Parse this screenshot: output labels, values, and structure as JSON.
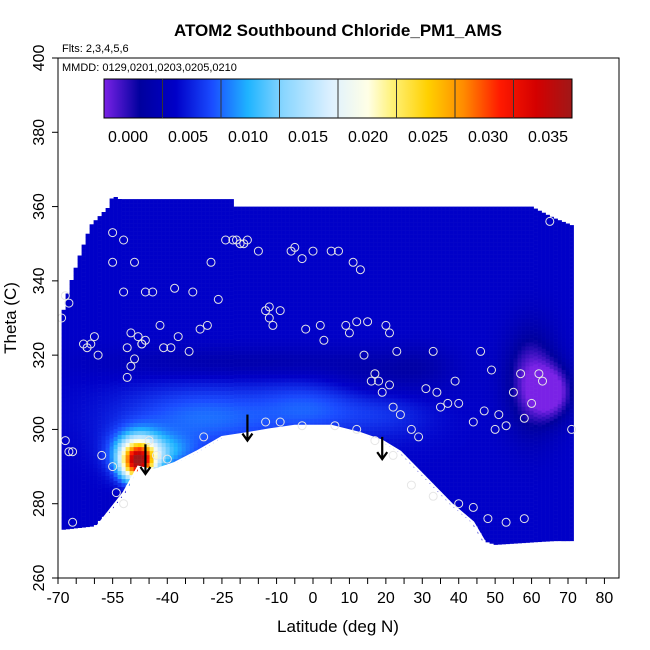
{
  "chart_data": {
    "type": "heatmap",
    "title": "ATOM2 Southbound Chloride_PM1_AMS",
    "subtitle_flights": "Flts: 2,3,4,5,6",
    "subtitle_dates": "MMDD: 0129,0201,0203,0205,0210",
    "xlabel": "Latitude (deg N)",
    "ylabel": "Theta (C)",
    "xlim": [
      -70,
      84
    ],
    "ylim": [
      260,
      400
    ],
    "x_ticks": [
      -70,
      -55,
      -40,
      -25,
      -10,
      0,
      10,
      20,
      30,
      40,
      50,
      60,
      70,
      80
    ],
    "x_ticks_minor": [
      -65,
      -60,
      -50,
      -45,
      -35,
      -30,
      -20,
      -15,
      -5,
      5,
      15,
      25,
      35,
      45,
      55,
      65,
      75
    ],
    "y_ticks": [
      260,
      280,
      300,
      320,
      340,
      360,
      380,
      400
    ],
    "colorbar": {
      "range": [
        -0.002,
        0.037
      ],
      "ticks": [
        "0.000",
        "0.005",
        "0.010",
        "0.015",
        "0.020",
        "0.025",
        "0.030",
        "0.035"
      ],
      "tick_values": [
        0.0,
        0.005,
        0.01,
        0.015,
        0.02,
        0.025,
        0.03,
        0.035
      ],
      "stops": [
        {
          "v": -0.002,
          "c": "#7a22e6"
        },
        {
          "v": 0.001,
          "c": "#00009e"
        },
        {
          "v": 0.004,
          "c": "#0000c8"
        },
        {
          "v": 0.007,
          "c": "#1a4cff"
        },
        {
          "v": 0.01,
          "c": "#1fb4ff"
        },
        {
          "v": 0.013,
          "c": "#8ad6ff"
        },
        {
          "v": 0.017,
          "c": "#dff1ff"
        },
        {
          "v": 0.02,
          "c": "#ffffe6"
        },
        {
          "v": 0.022,
          "c": "#fff27a"
        },
        {
          "v": 0.025,
          "c": "#ffd000"
        },
        {
          "v": 0.028,
          "c": "#ff8a00"
        },
        {
          "v": 0.031,
          "c": "#ff1a00"
        },
        {
          "v": 0.034,
          "c": "#d40000"
        },
        {
          "v": 0.037,
          "c": "#a01818"
        }
      ]
    },
    "field_background_value": 0.004,
    "data_domain_top": [
      [
        -69,
        330
      ],
      [
        -67,
        338
      ],
      [
        -64,
        347
      ],
      [
        -61,
        355
      ],
      [
        -58,
        358
      ],
      [
        -56,
        360
      ],
      [
        -55,
        363
      ],
      [
        -53,
        362
      ],
      [
        -35,
        362
      ],
      [
        -22,
        362
      ],
      [
        -22,
        360
      ],
      [
        0,
        360
      ],
      [
        20,
        360
      ],
      [
        40,
        360
      ],
      [
        60,
        360
      ],
      [
        66,
        357
      ],
      [
        71,
        355
      ]
    ],
    "data_domain_bottom": [
      [
        71,
        270
      ],
      [
        66,
        270
      ],
      [
        50,
        269
      ],
      [
        47,
        270
      ],
      [
        44,
        275
      ],
      [
        38,
        280
      ],
      [
        30,
        288
      ],
      [
        24,
        294
      ],
      [
        19,
        297
      ],
      [
        13,
        299
      ],
      [
        5,
        301
      ],
      [
        0,
        301
      ],
      [
        -5,
        301
      ],
      [
        -12,
        300
      ],
      [
        -18,
        299
      ],
      [
        -25,
        298
      ],
      [
        -32,
        294
      ],
      [
        -38,
        291
      ],
      [
        -44,
        289
      ],
      [
        -48,
        290
      ],
      [
        -52,
        283
      ],
      [
        -56,
        278
      ],
      [
        -60,
        274
      ],
      [
        -69,
        273
      ]
    ],
    "terrain_boundary": [
      [
        -60,
        273
      ],
      [
        -56,
        278
      ],
      [
        -52,
        283
      ],
      [
        -48,
        290
      ],
      [
        -44,
        289
      ],
      [
        -38,
        291
      ],
      [
        -32,
        294
      ],
      [
        -25,
        298
      ],
      [
        -18,
        299
      ],
      [
        -12,
        300
      ],
      [
        -5,
        301
      ],
      [
        0,
        301
      ],
      [
        5,
        301
      ],
      [
        13,
        299
      ],
      [
        19,
        297
      ],
      [
        24,
        294
      ],
      [
        30,
        288
      ],
      [
        38,
        280
      ],
      [
        44,
        275
      ],
      [
        47,
        270
      ]
    ],
    "anomalies": [
      {
        "x": -48,
        "y": 291,
        "sx": 3.2,
        "sy": 3.5,
        "v": 0.03
      },
      {
        "x": -48,
        "y": 294,
        "sx": 5,
        "sy": 4,
        "v": 0.013
      },
      {
        "x": -40,
        "y": 294,
        "sx": 6,
        "sy": 3,
        "v": 0.008
      },
      {
        "x": -30,
        "y": 303,
        "sx": 16,
        "sy": 6,
        "v": 0.008
      },
      {
        "x": 0,
        "y": 306,
        "sx": 10,
        "sy": 5,
        "v": 0.007
      },
      {
        "x": 20,
        "y": 305,
        "sx": 9,
        "sy": 5,
        "v": 0.006
      },
      {
        "x": -55,
        "y": 305,
        "sx": 4,
        "sy": 5,
        "v": 0.004
      },
      {
        "x": -20,
        "y": 318,
        "sx": 28,
        "sy": 3,
        "v": 0.002
      },
      {
        "x": -10,
        "y": 312,
        "sx": 16,
        "sy": 4,
        "v": 0.004
      },
      {
        "x": 20,
        "y": 313,
        "sx": 12,
        "sy": 5,
        "v": 0.002
      },
      {
        "x": 60,
        "y": 313,
        "sx": 5,
        "sy": 10,
        "v": -0.0015
      },
      {
        "x": 66,
        "y": 310,
        "sx": 4,
        "sy": 5,
        "v": -0.0015
      },
      {
        "x": 30,
        "y": 318,
        "sx": 6,
        "sy": 4,
        "v": 0.003
      },
      {
        "x": -45,
        "y": 280,
        "sx": 5,
        "sy": 4,
        "v": 0.001
      }
    ],
    "arrows": [
      {
        "x": -46,
        "y_from": 296,
        "y_to": 288
      },
      {
        "x": -18,
        "y_from": 304,
        "y_to": 297
      },
      {
        "x": 19,
        "y_from": 298,
        "y_to": 292
      }
    ],
    "sample_points": [
      [
        -69,
        330
      ],
      [
        -68,
        336
      ],
      [
        -67,
        334
      ],
      [
        -68,
        297
      ],
      [
        -67,
        294
      ],
      [
        -66,
        275
      ],
      [
        -63,
        323
      ],
      [
        -62,
        322
      ],
      [
        -61,
        323
      ],
      [
        -60,
        325
      ],
      [
        -59,
        320
      ],
      [
        -55,
        353
      ],
      [
        -55,
        345
      ],
      [
        -52,
        351
      ],
      [
        -52,
        337
      ],
      [
        -51,
        322
      ],
      [
        -50,
        326
      ],
      [
        -48,
        325
      ],
      [
        -47,
        323
      ],
      [
        -46,
        324
      ],
      [
        -49,
        319
      ],
      [
        -50,
        317
      ],
      [
        -51,
        314
      ],
      [
        -49,
        345
      ],
      [
        -47,
        323
      ],
      [
        -46,
        337
      ],
      [
        -44,
        337
      ],
      [
        -42,
        328
      ],
      [
        -41,
        322
      ],
      [
        -39,
        322
      ],
      [
        -38,
        338
      ],
      [
        -37,
        325
      ],
      [
        -34,
        321
      ],
      [
        -33,
        337
      ],
      [
        -31,
        327
      ],
      [
        -29,
        328
      ],
      [
        -28,
        345
      ],
      [
        -26,
        335
      ],
      [
        -24,
        351
      ],
      [
        -22,
        351
      ],
      [
        -21,
        351
      ],
      [
        -20,
        350
      ],
      [
        -19,
        350
      ],
      [
        -18,
        351
      ],
      [
        -15,
        348
      ],
      [
        -13,
        332
      ],
      [
        -12,
        333
      ],
      [
        -12,
        330
      ],
      [
        -11,
        328
      ],
      [
        -9,
        332
      ],
      [
        -6,
        348
      ],
      [
        -5,
        349
      ],
      [
        -3,
        346
      ],
      [
        -2,
        327
      ],
      [
        0,
        348
      ],
      [
        2,
        328
      ],
      [
        3,
        324
      ],
      [
        5,
        348
      ],
      [
        7,
        348
      ],
      [
        9,
        328
      ],
      [
        10,
        326
      ],
      [
        11,
        345
      ],
      [
        12,
        329
      ],
      [
        13,
        343
      ],
      [
        14,
        320
      ],
      [
        15,
        329
      ],
      [
        16,
        313
      ],
      [
        17,
        315
      ],
      [
        18,
        313
      ],
      [
        19,
        310
      ],
      [
        20,
        328
      ],
      [
        21,
        326
      ],
      [
        21,
        312
      ],
      [
        22,
        306
      ],
      [
        23,
        321
      ],
      [
        24,
        304
      ],
      [
        27,
        300
      ],
      [
        29,
        298
      ],
      [
        31,
        311
      ],
      [
        33,
        321
      ],
      [
        34,
        310
      ],
      [
        35,
        306
      ],
      [
        37,
        307
      ],
      [
        39,
        313
      ],
      [
        40,
        307
      ],
      [
        44,
        302
      ],
      [
        46,
        321
      ],
      [
        47,
        305
      ],
      [
        49,
        316
      ],
      [
        50,
        300
      ],
      [
        51,
        304
      ],
      [
        53,
        301
      ],
      [
        55,
        310
      ],
      [
        57,
        315
      ],
      [
        58,
        303
      ],
      [
        60,
        307
      ],
      [
        62,
        315
      ],
      [
        63,
        313
      ],
      [
        65,
        356
      ],
      [
        71,
        300
      ],
      [
        -66,
        294
      ],
      [
        -58,
        293
      ],
      [
        -55,
        290
      ],
      [
        -54,
        283
      ],
      [
        -52,
        280
      ],
      [
        -45,
        297
      ],
      [
        -43,
        293
      ],
      [
        -40,
        292
      ],
      [
        -30,
        298
      ],
      [
        -13,
        302
      ],
      [
        -9,
        302
      ],
      [
        -3,
        301
      ],
      [
        6,
        301
      ],
      [
        12,
        300
      ],
      [
        17,
        297
      ],
      [
        22,
        293
      ],
      [
        27,
        285
      ],
      [
        33,
        282
      ],
      [
        40,
        280
      ],
      [
        44,
        279
      ],
      [
        48,
        276
      ],
      [
        53,
        275
      ],
      [
        58,
        276
      ]
    ]
  }
}
